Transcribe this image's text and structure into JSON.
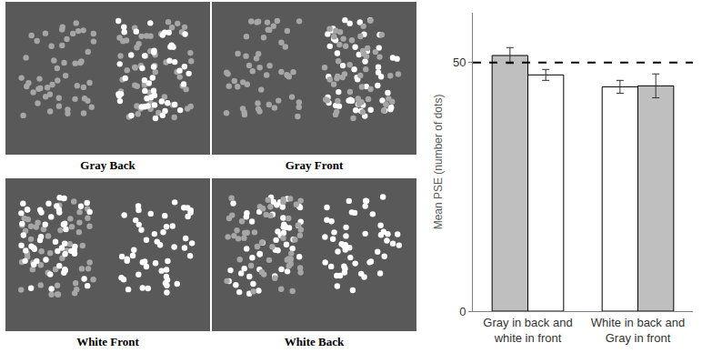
{
  "panels": {
    "background": "#595959",
    "dot_colors": {
      "gray": "#a6a6a6",
      "white": "#ffffff"
    },
    "items": [
      {
        "label": "Gray Back",
        "left_dots": [
          "gray"
        ],
        "right_dots": [
          "gray",
          "white"
        ]
      },
      {
        "label": "Gray Front",
        "left_dots": [
          "gray"
        ],
        "right_dots": [
          "white",
          "gray"
        ]
      },
      {
        "label": "White Front",
        "left_dots": [
          "gray",
          "white"
        ],
        "right_dots": [
          "white"
        ]
      },
      {
        "label": "White Back",
        "left_dots": [
          "white",
          "gray"
        ],
        "right_dots": [
          "white"
        ]
      }
    ]
  },
  "chart_data": {
    "type": "bar",
    "y_label": "Mean PSE (number of dots)",
    "categories": [
      "Gray in back and white in front",
      "White in back and Gray in front"
    ],
    "series": [
      {
        "colors": [
          "#bfbfbf",
          "#ffffff"
        ],
        "values": [
          51.4,
          45.1
        ],
        "errors": [
          1.6,
          1.3
        ]
      },
      {
        "colors": [
          "#ffffff",
          "#bfbfbf"
        ],
        "values": [
          47.5,
          45.3
        ],
        "errors": [
          1.1,
          2.4
        ]
      }
    ],
    "ylim": [
      0,
      60
    ],
    "yticks": [
      0,
      50
    ],
    "reference_line": {
      "value": 50,
      "line_style": "dash"
    },
    "grid": false
  }
}
